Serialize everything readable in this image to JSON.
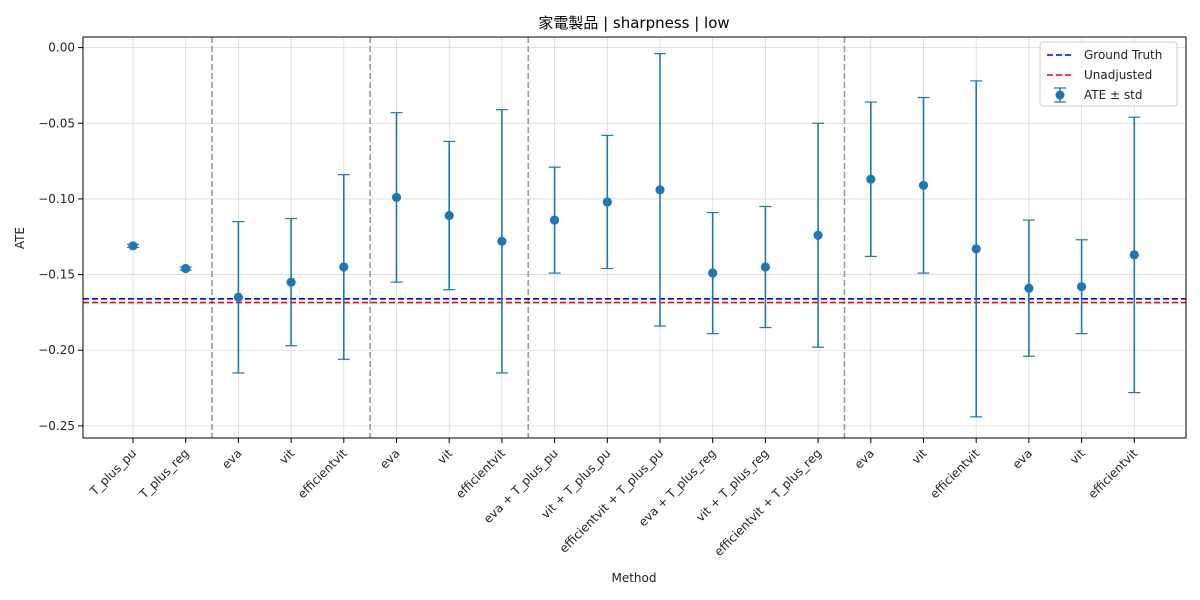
{
  "chart_data": {
    "type": "scatter",
    "title": "家電製品 | sharpness | low",
    "xlabel": "Method",
    "ylabel": "ATE",
    "ylim": [
      -0.258,
      0.007
    ],
    "yticks": [
      0.0,
      -0.05,
      -0.1,
      -0.15,
      -0.2,
      -0.25
    ],
    "ytick_labels": [
      "0.00",
      "−0.05",
      "−0.10",
      "−0.15",
      "−0.20",
      "−0.25"
    ],
    "grid": true,
    "legend_position": "top-right",
    "legend": [
      "Ground Truth",
      "Unadjusted",
      "ATE ± std"
    ],
    "reference_lines": [
      {
        "name": "Ground Truth",
        "value": -0.166,
        "color": "#0000ff",
        "style": "dashed"
      },
      {
        "name": "Unadjusted",
        "value": -0.1685,
        "color": "#ff0000",
        "style": "dashed"
      }
    ],
    "group_separators_after": [
      1,
      4,
      7,
      13
    ],
    "series": [
      {
        "name": "ATE ± std",
        "color": "#1f77b4",
        "categories": [
          "T_plus_pu",
          "T_plus_reg",
          "eva",
          "vit",
          "efficientvit",
          "eva",
          "vit",
          "efficientvit",
          "eva + T_plus_pu",
          "vit + T_plus_pu",
          "efficientvit + T_plus_pu",
          "eva + T_plus_reg",
          "vit + T_plus_reg",
          "efficientvit + T_plus_reg",
          "eva",
          "vit",
          "efficientvit",
          "eva",
          "vit",
          "efficientvit"
        ],
        "values": [
          -0.131,
          -0.146,
          -0.165,
          -0.155,
          -0.145,
          -0.099,
          -0.111,
          -0.128,
          -0.114,
          -0.102,
          -0.094,
          -0.149,
          -0.145,
          -0.124,
          -0.087,
          -0.091,
          -0.133,
          -0.159,
          -0.158,
          -0.137
        ],
        "std": [
          0.001,
          0.001,
          0.05,
          0.042,
          0.061,
          0.056,
          0.049,
          0.087,
          0.035,
          0.044,
          0.09,
          0.04,
          0.04,
          0.074,
          0.051,
          0.058,
          0.111,
          0.045,
          0.031,
          0.091
        ]
      }
    ]
  }
}
